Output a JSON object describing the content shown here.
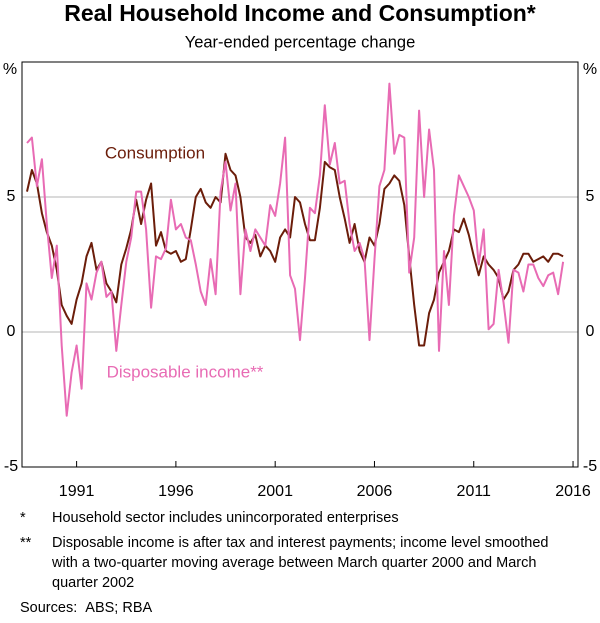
{
  "chart_data": {
    "type": "line",
    "title": "Real Household Income and Consumption*",
    "subtitle": "Year-ended percentage change",
    "y_unit": "%",
    "xlim": [
      1988.25,
      2016.25
    ],
    "ylim": [
      -5,
      10
    ],
    "yticks": [
      -5,
      0,
      5
    ],
    "xticks": [
      1991,
      1996,
      2001,
      2006,
      2011,
      2016
    ],
    "grid": true,
    "x": [
      1988.5,
      1988.75,
      1989,
      1989.25,
      1989.5,
      1989.75,
      1990,
      1990.25,
      1990.5,
      1990.75,
      1991,
      1991.25,
      1991.5,
      1991.75,
      1992,
      1992.25,
      1992.5,
      1992.75,
      1993,
      1993.25,
      1993.5,
      1993.75,
      1994,
      1994.25,
      1994.5,
      1994.75,
      1995,
      1995.25,
      1995.5,
      1995.75,
      1996,
      1996.25,
      1996.5,
      1996.75,
      1997,
      1997.25,
      1997.5,
      1997.75,
      1998,
      1998.25,
      1998.5,
      1998.75,
      1999,
      1999.25,
      1999.5,
      1999.75,
      2000,
      2000.25,
      2000.5,
      2000.75,
      2001,
      2001.25,
      2001.5,
      2001.75,
      2002,
      2002.25,
      2002.5,
      2002.75,
      2003,
      2003.25,
      2003.5,
      2003.75,
      2004,
      2004.25,
      2004.5,
      2004.75,
      2005,
      2005.25,
      2005.5,
      2005.75,
      2006,
      2006.25,
      2006.5,
      2006.75,
      2007,
      2007.25,
      2007.5,
      2007.75,
      2008,
      2008.25,
      2008.5,
      2008.75,
      2009,
      2009.25,
      2009.5,
      2009.75,
      2010,
      2010.25,
      2010.5,
      2010.75,
      2011,
      2011.25,
      2011.5,
      2011.75,
      2012,
      2012.25,
      2012.5,
      2012.75,
      2013,
      2013.25,
      2013.5,
      2013.75,
      2014,
      2014.25,
      2014.5,
      2014.75,
      2015,
      2015.25,
      2015.5
    ],
    "series": [
      {
        "name": "Consumption",
        "color": "#6b1d0a",
        "values": [
          5.2,
          6.0,
          5.5,
          4.4,
          3.7,
          3.2,
          2.3,
          1.0,
          0.6,
          0.3,
          1.2,
          1.8,
          2.8,
          3.3,
          2.3,
          2.6,
          1.8,
          1.5,
          1.1,
          2.5,
          3.1,
          3.8,
          4.9,
          4.0,
          4.9,
          5.5,
          3.2,
          3.7,
          3.0,
          2.9,
          3.0,
          2.6,
          2.7,
          3.8,
          5.0,
          5.3,
          4.8,
          4.6,
          5.0,
          4.8,
          6.6,
          6.0,
          5.8,
          5.0,
          3.5,
          3.3,
          3.6,
          2.8,
          3.2,
          3.0,
          2.6,
          3.5,
          3.8,
          3.5,
          5.0,
          4.8,
          4.0,
          3.4,
          3.4,
          4.6,
          6.3,
          6.1,
          6.0,
          5.0,
          4.2,
          3.3,
          4.0,
          3.0,
          2.6,
          3.5,
          3.2,
          4.0,
          5.3,
          5.5,
          5.8,
          5.6,
          4.7,
          2.8,
          1.0,
          -0.5,
          -0.5,
          0.7,
          1.2,
          2.2,
          2.6,
          3.0,
          3.8,
          3.7,
          4.2,
          3.6,
          2.8,
          2.1,
          2.8,
          2.5,
          2.3,
          2.0,
          1.2,
          1.5,
          2.3,
          2.5,
          2.9,
          2.9,
          2.6,
          2.7,
          2.8,
          2.6,
          2.9,
          2.9,
          2.8
        ]
      },
      {
        "name": "Disposable income**",
        "color": "#e86bb4",
        "values": [
          7.0,
          7.2,
          5.4,
          6.4,
          4.0,
          2.0,
          3.2,
          -0.5,
          -3.1,
          -1.5,
          -0.5,
          -2.1,
          1.8,
          1.2,
          2.2,
          2.6,
          1.3,
          1.5,
          -0.7,
          1.0,
          2.6,
          3.5,
          5.2,
          5.2,
          3.8,
          0.9,
          2.8,
          2.7,
          3.1,
          4.9,
          3.8,
          4.0,
          3.5,
          3.4,
          2.5,
          1.5,
          1.0,
          2.7,
          1.4,
          5.2,
          6.3,
          4.5,
          5.5,
          1.4,
          3.8,
          3.0,
          3.8,
          3.5,
          3.2,
          4.7,
          4.3,
          5.5,
          7.2,
          2.1,
          1.6,
          -0.3,
          2.0,
          4.6,
          4.4,
          5.8,
          8.4,
          6.2,
          7.0,
          5.5,
          5.6,
          4.0,
          3.0,
          3.3,
          2.7,
          -0.3,
          2.7,
          5.4,
          6.0,
          9.2,
          6.6,
          7.3,
          7.2,
          2.2,
          3.5,
          8.2,
          5.0,
          7.5,
          6.0,
          -0.7,
          3.0,
          1.0,
          4.3,
          5.8,
          5.4,
          5.0,
          4.5,
          2.5,
          3.8,
          0.1,
          0.3,
          2.3,
          1.1,
          -0.4,
          2.3,
          2.2,
          1.5,
          2.5,
          2.5,
          2.0,
          1.7,
          2.1,
          2.2,
          1.4,
          2.6
        ]
      }
    ],
    "notes": [
      {
        "marker": "*",
        "text": "Household sector includes unincorporated enterprises"
      },
      {
        "marker": "**",
        "text": "Disposable income is after tax and interest payments; income level smoothed with a two-quarter moving average between March quarter 2000 and March quarter 2002"
      }
    ],
    "sources_label": "Sources:",
    "sources": "ABS; RBA"
  }
}
